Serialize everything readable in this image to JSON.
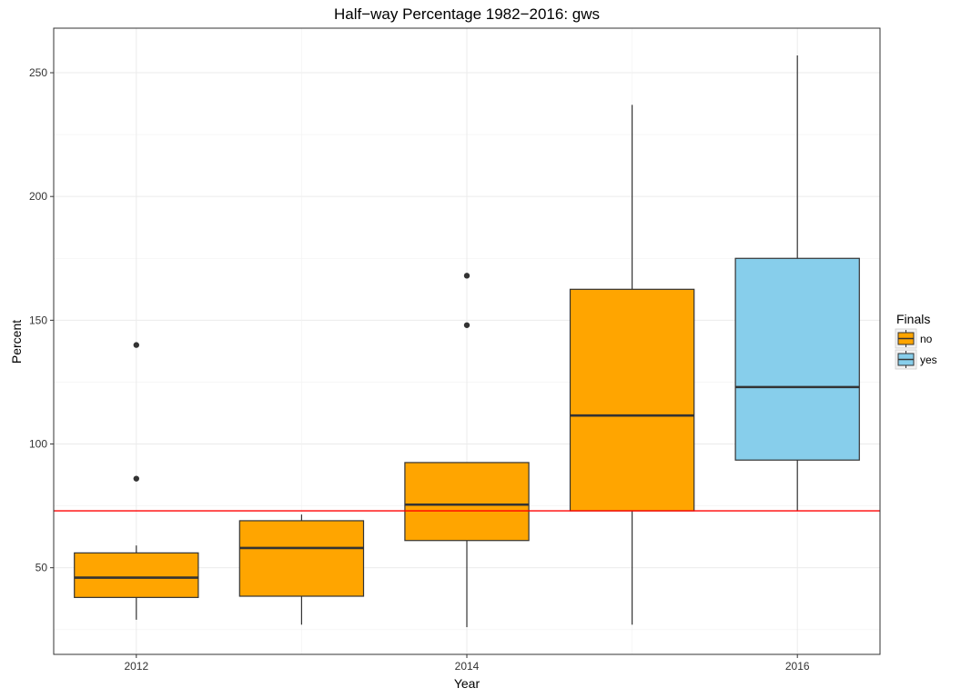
{
  "chart_data": {
    "type": "boxplot",
    "title": "Half−way Percentage 1982−2016: gws",
    "xlabel": "Year",
    "ylabel": "Percent",
    "ylim": [
      15,
      268
    ],
    "y_ticks": [
      50,
      100,
      150,
      200,
      250
    ],
    "x_ticks": [
      "2012",
      "2014",
      "2016"
    ],
    "grid": true,
    "reference_line": {
      "y": 73,
      "color": "#ff0000"
    },
    "legend": {
      "title": "Finals",
      "position": "right",
      "entries": [
        {
          "label": "no",
          "color": "#ffa500"
        },
        {
          "label": "yes",
          "color": "#87ceeb"
        }
      ]
    },
    "boxes": [
      {
        "year": 2012,
        "finals": "no",
        "whisker_low": 29,
        "q1": 38,
        "median": 46,
        "q3": 56,
        "whisker_high": 59,
        "outliers": [
          86,
          140
        ]
      },
      {
        "year": 2013,
        "finals": "no",
        "whisker_low": 27,
        "q1": 38.5,
        "median": 58,
        "q3": 69,
        "whisker_high": 71.5,
        "outliers": []
      },
      {
        "year": 2014,
        "finals": "no",
        "whisker_low": 26,
        "q1": 61,
        "median": 75.5,
        "q3": 92.5,
        "whisker_high": 92.5,
        "outliers": [
          148,
          168
        ]
      },
      {
        "year": 2015,
        "finals": "no",
        "whisker_low": 27,
        "q1": 73,
        "median": 111.5,
        "q3": 162.5,
        "whisker_high": 237,
        "outliers": []
      },
      {
        "year": 2016,
        "finals": "yes",
        "whisker_low": 73,
        "q1": 93.5,
        "median": 123,
        "q3": 175,
        "whisker_high": 257,
        "outliers": []
      }
    ]
  }
}
